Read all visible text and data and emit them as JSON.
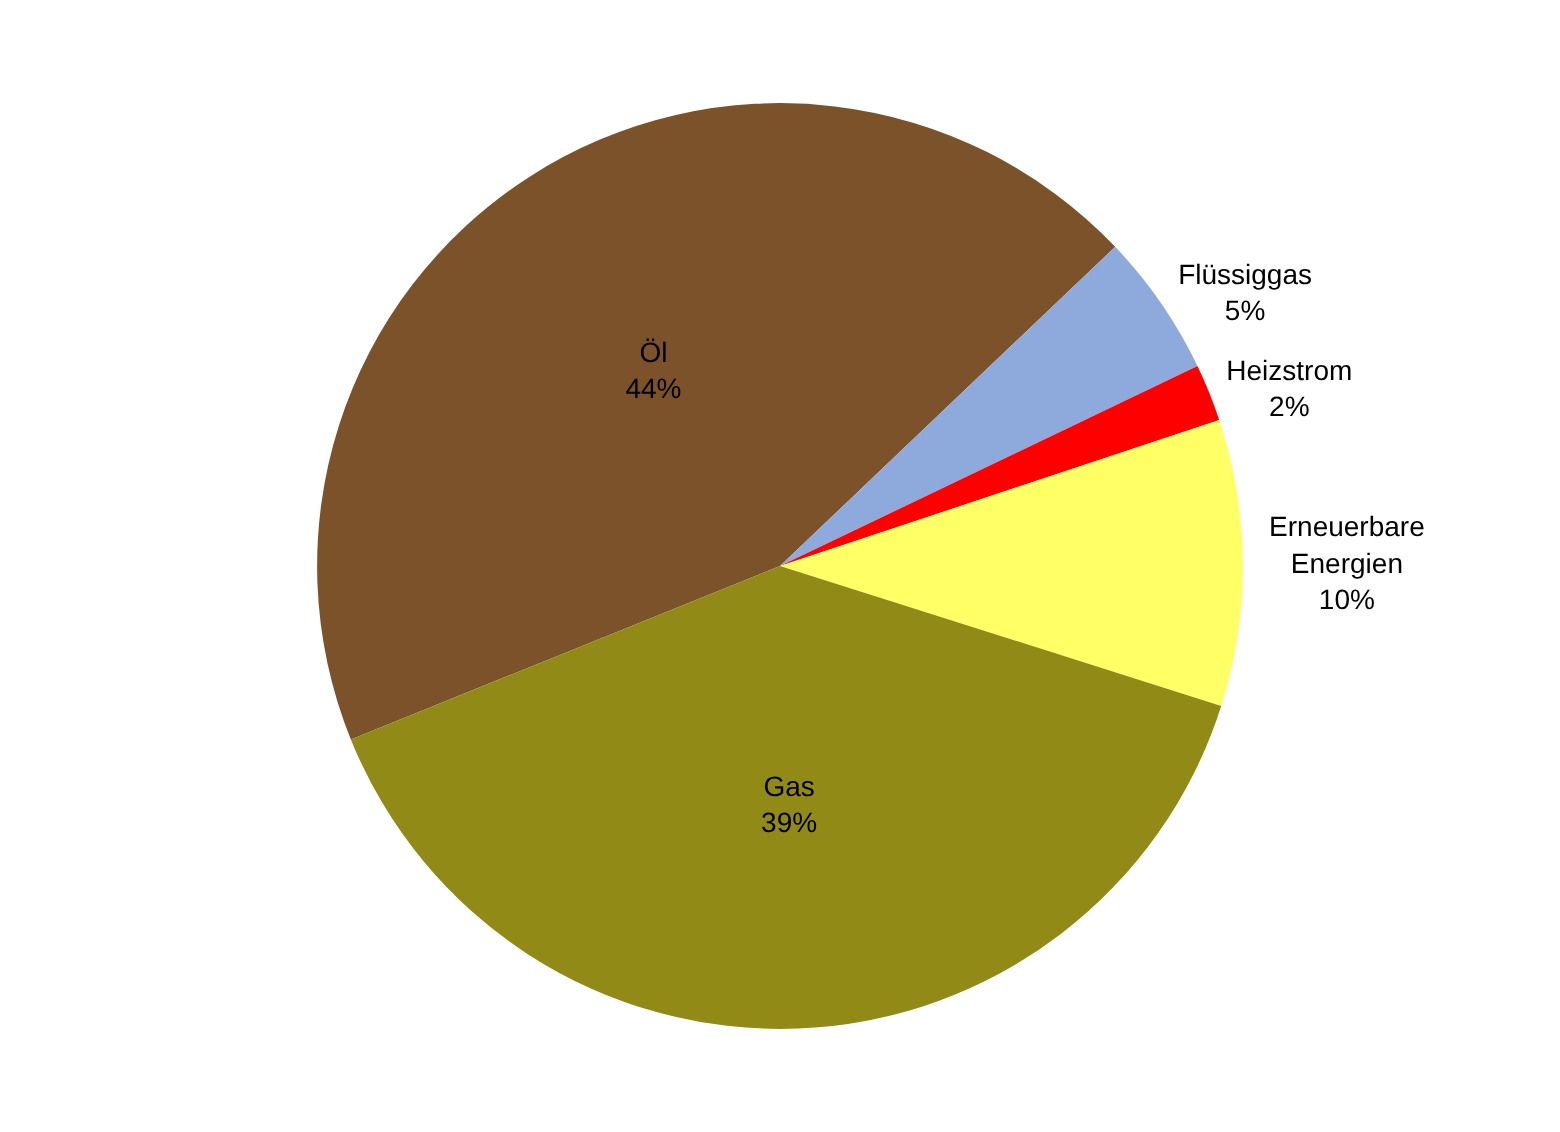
{
  "chart_data": {
    "type": "pie",
    "categories": [
      "Öl",
      "Flüssiggas",
      "Heizstrom",
      "Erneuerbare Energien",
      "Gas"
    ],
    "values": [
      44,
      5,
      2,
      10,
      39
    ],
    "colors": [
      "#7b5229",
      "#8eaadc",
      "#ff0000",
      "#ffff66",
      "#918a16"
    ],
    "value_labels": [
      "44%",
      "5%",
      "2%",
      "10%",
      "39%"
    ],
    "legend": false
  }
}
